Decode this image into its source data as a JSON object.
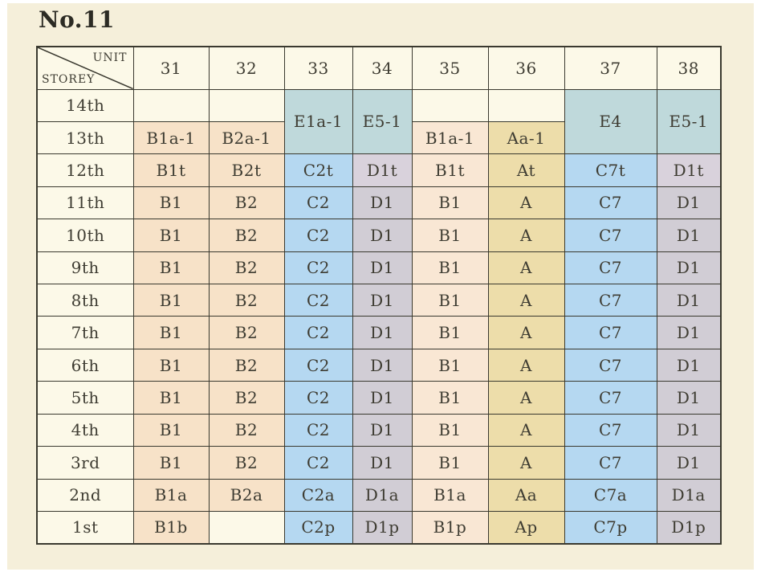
{
  "title": "No.11",
  "corner": {
    "unit_label": "UNIT",
    "storey_label": "STOREY"
  },
  "units": [
    "31",
    "32",
    "33",
    "34",
    "35",
    "36",
    "37",
    "38"
  ],
  "palette": {
    "cream": "#fcf9e8",
    "peach": "#f7e2c8",
    "pink": "#f9e7d4",
    "tan": "#edddaa",
    "blue": "#b5d8f1",
    "lavender": "#d1cdd5",
    "lavender_light": "#d9d2dc",
    "teal": "#bfd9db",
    "paper": "#f5efda",
    "grid_line": "#3a392f",
    "text": "#3e3c32"
  },
  "rows": [
    {
      "storey": "14th",
      "cells": [
        {
          "t": "",
          "c": "cream"
        },
        {
          "t": "",
          "c": "cream"
        },
        {
          "t": "E1a-1",
          "c": "teal",
          "span": 2
        },
        {
          "t": "E5-1",
          "c": "teal",
          "span": 2
        },
        {
          "t": "",
          "c": "cream"
        },
        {
          "t": "",
          "c": "cream"
        },
        {
          "t": "E4",
          "c": "teal",
          "span": 2
        },
        {
          "t": "E5-1",
          "c": "teal",
          "span": 2
        }
      ]
    },
    {
      "storey": "13th",
      "cells": [
        {
          "t": "B1a-1",
          "c": "peach"
        },
        {
          "t": "B2a-1",
          "c": "peach"
        },
        null,
        null,
        {
          "t": "B1a-1",
          "c": "pink"
        },
        {
          "t": "Aa-1",
          "c": "tan"
        },
        null,
        null
      ]
    },
    {
      "storey": "12th",
      "cells": [
        {
          "t": "B1t",
          "c": "peach"
        },
        {
          "t": "B2t",
          "c": "peach"
        },
        {
          "t": "C2t",
          "c": "blue"
        },
        {
          "t": "D1t",
          "c": "lavender_light"
        },
        {
          "t": "B1t",
          "c": "pink"
        },
        {
          "t": "At",
          "c": "tan"
        },
        {
          "t": "C7t",
          "c": "blue"
        },
        {
          "t": "D1t",
          "c": "lavender_light"
        }
      ]
    },
    {
      "storey": "11th",
      "cells": [
        {
          "t": "B1",
          "c": "peach"
        },
        {
          "t": "B2",
          "c": "peach"
        },
        {
          "t": "C2",
          "c": "blue"
        },
        {
          "t": "D1",
          "c": "lavender"
        },
        {
          "t": "B1",
          "c": "pink"
        },
        {
          "t": "A",
          "c": "tan"
        },
        {
          "t": "C7",
          "c": "blue"
        },
        {
          "t": "D1",
          "c": "lavender"
        }
      ]
    },
    {
      "storey": "10th",
      "cells": [
        {
          "t": "B1",
          "c": "peach"
        },
        {
          "t": "B2",
          "c": "peach"
        },
        {
          "t": "C2",
          "c": "blue"
        },
        {
          "t": "D1",
          "c": "lavender"
        },
        {
          "t": "B1",
          "c": "pink"
        },
        {
          "t": "A",
          "c": "tan"
        },
        {
          "t": "C7",
          "c": "blue"
        },
        {
          "t": "D1",
          "c": "lavender"
        }
      ]
    },
    {
      "storey": "9th",
      "cells": [
        {
          "t": "B1",
          "c": "peach"
        },
        {
          "t": "B2",
          "c": "peach"
        },
        {
          "t": "C2",
          "c": "blue"
        },
        {
          "t": "D1",
          "c": "lavender"
        },
        {
          "t": "B1",
          "c": "pink"
        },
        {
          "t": "A",
          "c": "tan"
        },
        {
          "t": "C7",
          "c": "blue"
        },
        {
          "t": "D1",
          "c": "lavender"
        }
      ]
    },
    {
      "storey": "8th",
      "cells": [
        {
          "t": "B1",
          "c": "peach"
        },
        {
          "t": "B2",
          "c": "peach"
        },
        {
          "t": "C2",
          "c": "blue"
        },
        {
          "t": "D1",
          "c": "lavender"
        },
        {
          "t": "B1",
          "c": "pink"
        },
        {
          "t": "A",
          "c": "tan"
        },
        {
          "t": "C7",
          "c": "blue"
        },
        {
          "t": "D1",
          "c": "lavender"
        }
      ]
    },
    {
      "storey": "7th",
      "cells": [
        {
          "t": "B1",
          "c": "peach"
        },
        {
          "t": "B2",
          "c": "peach"
        },
        {
          "t": "C2",
          "c": "blue"
        },
        {
          "t": "D1",
          "c": "lavender"
        },
        {
          "t": "B1",
          "c": "pink"
        },
        {
          "t": "A",
          "c": "tan"
        },
        {
          "t": "C7",
          "c": "blue"
        },
        {
          "t": "D1",
          "c": "lavender"
        }
      ]
    },
    {
      "storey": "6th",
      "cells": [
        {
          "t": "B1",
          "c": "peach"
        },
        {
          "t": "B2",
          "c": "peach"
        },
        {
          "t": "C2",
          "c": "blue"
        },
        {
          "t": "D1",
          "c": "lavender"
        },
        {
          "t": "B1",
          "c": "pink"
        },
        {
          "t": "A",
          "c": "tan"
        },
        {
          "t": "C7",
          "c": "blue"
        },
        {
          "t": "D1",
          "c": "lavender"
        }
      ]
    },
    {
      "storey": "5th",
      "cells": [
        {
          "t": "B1",
          "c": "peach"
        },
        {
          "t": "B2",
          "c": "peach"
        },
        {
          "t": "C2",
          "c": "blue"
        },
        {
          "t": "D1",
          "c": "lavender"
        },
        {
          "t": "B1",
          "c": "pink"
        },
        {
          "t": "A",
          "c": "tan"
        },
        {
          "t": "C7",
          "c": "blue"
        },
        {
          "t": "D1",
          "c": "lavender"
        }
      ]
    },
    {
      "storey": "4th",
      "cells": [
        {
          "t": "B1",
          "c": "peach"
        },
        {
          "t": "B2",
          "c": "peach"
        },
        {
          "t": "C2",
          "c": "blue"
        },
        {
          "t": "D1",
          "c": "lavender"
        },
        {
          "t": "B1",
          "c": "pink"
        },
        {
          "t": "A",
          "c": "tan"
        },
        {
          "t": "C7",
          "c": "blue"
        },
        {
          "t": "D1",
          "c": "lavender"
        }
      ]
    },
    {
      "storey": "3rd",
      "cells": [
        {
          "t": "B1",
          "c": "peach"
        },
        {
          "t": "B2",
          "c": "peach"
        },
        {
          "t": "C2",
          "c": "blue"
        },
        {
          "t": "D1",
          "c": "lavender"
        },
        {
          "t": "B1",
          "c": "pink"
        },
        {
          "t": "A",
          "c": "tan"
        },
        {
          "t": "C7",
          "c": "blue"
        },
        {
          "t": "D1",
          "c": "lavender"
        }
      ]
    },
    {
      "storey": "2nd",
      "cells": [
        {
          "t": "B1a",
          "c": "peach"
        },
        {
          "t": "B2a",
          "c": "peach"
        },
        {
          "t": "C2a",
          "c": "blue"
        },
        {
          "t": "D1a",
          "c": "lavender"
        },
        {
          "t": "B1a",
          "c": "pink"
        },
        {
          "t": "Aa",
          "c": "tan"
        },
        {
          "t": "C7a",
          "c": "blue"
        },
        {
          "t": "D1a",
          "c": "lavender"
        }
      ]
    },
    {
      "storey": "1st",
      "cells": [
        {
          "t": "B1b",
          "c": "peach"
        },
        {
          "t": "",
          "c": "cream"
        },
        {
          "t": "C2p",
          "c": "blue"
        },
        {
          "t": "D1p",
          "c": "lavender"
        },
        {
          "t": "B1p",
          "c": "pink"
        },
        {
          "t": "Ap",
          "c": "tan"
        },
        {
          "t": "C7p",
          "c": "blue"
        },
        {
          "t": "D1p",
          "c": "lavender"
        }
      ]
    }
  ]
}
